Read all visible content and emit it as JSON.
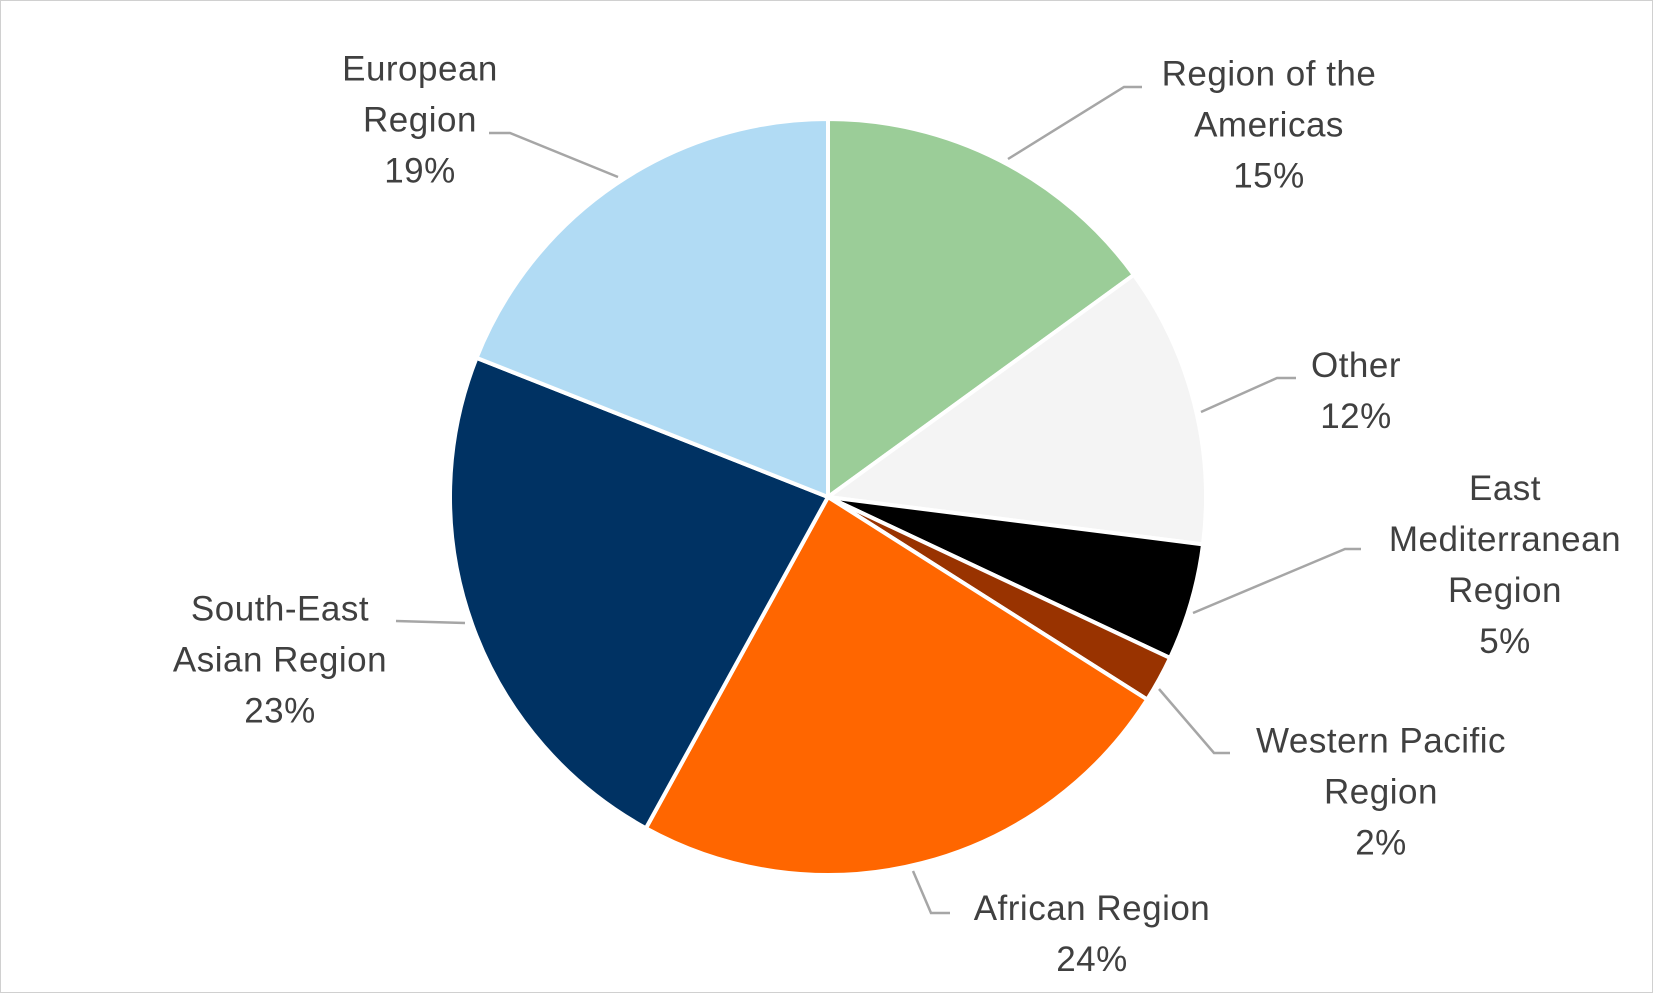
{
  "chart_data": {
    "type": "pie",
    "categories": [
      "Region of the Americas",
      "Other",
      "East Mediterranean Region",
      "Western Pacific Region",
      "African Region",
      "South-East Asian Region",
      "European Region"
    ],
    "values": [
      15,
      12,
      5,
      2,
      24,
      23,
      19
    ],
    "value_labels": [
      "15%",
      "12%",
      "5%",
      "2%",
      "24%",
      "23%",
      "19%"
    ],
    "colors": [
      "#9bcd98",
      "#f4f4f4",
      "#000000",
      "#993300",
      "#ff6600",
      "#003263",
      "#b1dbf4"
    ]
  }
}
